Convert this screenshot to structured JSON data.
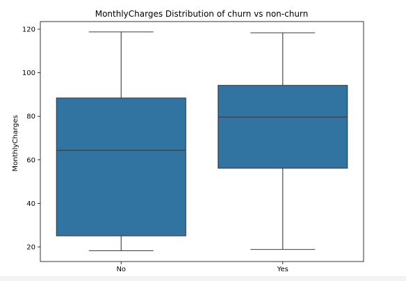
{
  "chart_data": {
    "type": "box",
    "title": "MonthlyCharges Distribution of churn vs non-churn",
    "xlabel": "",
    "ylabel": "MonthlyCharges",
    "ylim": [
      13.3,
      123.5
    ],
    "yticks": [
      20,
      40,
      60,
      80,
      100,
      120
    ],
    "categories": [
      "No",
      "Yes"
    ],
    "boxes": [
      {
        "category": "No",
        "whisker_low": 18.25,
        "q1": 25.1,
        "median": 64.4,
        "q3": 88.4,
        "whisker_high": 118.75
      },
      {
        "category": "Yes",
        "whisker_low": 18.85,
        "q1": 56.15,
        "median": 79.65,
        "q3": 94.2,
        "whisker_high": 118.35
      }
    ],
    "grid": false,
    "colors": {
      "box_fill": "#3274a1",
      "line": "#3b3b3b"
    }
  }
}
